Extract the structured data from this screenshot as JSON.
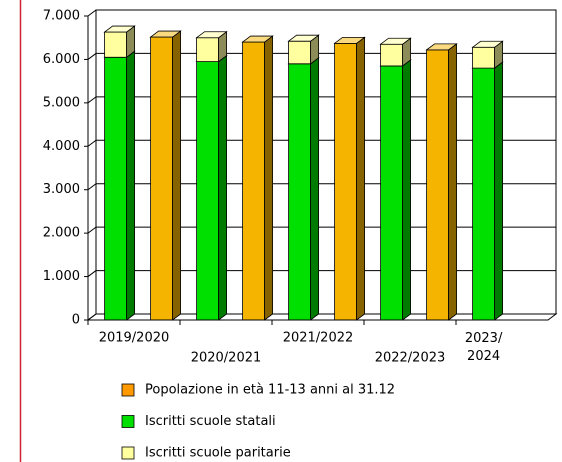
{
  "chart_data": {
    "type": "bar3d",
    "categories": [
      "2019/2020",
      "2020/2021",
      "2021/2022",
      "2022/2023",
      "2023/2024"
    ],
    "series": [
      {
        "name": "Popolazione in età 11-13 anni al 31.12",
        "color": "#f5b400",
        "values": [
          6515,
          6400,
          6370,
          6220,
          null
        ]
      },
      {
        "name": "Iscritti scuole statali",
        "color": "#00e000",
        "values": [
          6050,
          5950,
          5900,
          5850,
          5800
        ]
      },
      {
        "name": "Iscritti scuole paritarie",
        "color": "#ffffa0",
        "values": [
          580,
          550,
          520,
          500,
          480
        ]
      }
    ],
    "ylim": [
      0,
      7000
    ],
    "yticks": [
      {
        "value": 0,
        "label": "0"
      },
      {
        "value": 1000,
        "label": "1.000"
      },
      {
        "value": 2000,
        "label": "2.000"
      },
      {
        "value": 3000,
        "label": "3.000"
      },
      {
        "value": 4000,
        "label": "4.000"
      },
      {
        "value": 5000,
        "label": "5.000"
      },
      {
        "value": 6000,
        "label": "6.000"
      },
      {
        "value": 7000,
        "label": "7.000"
      }
    ],
    "grid": true
  }
}
